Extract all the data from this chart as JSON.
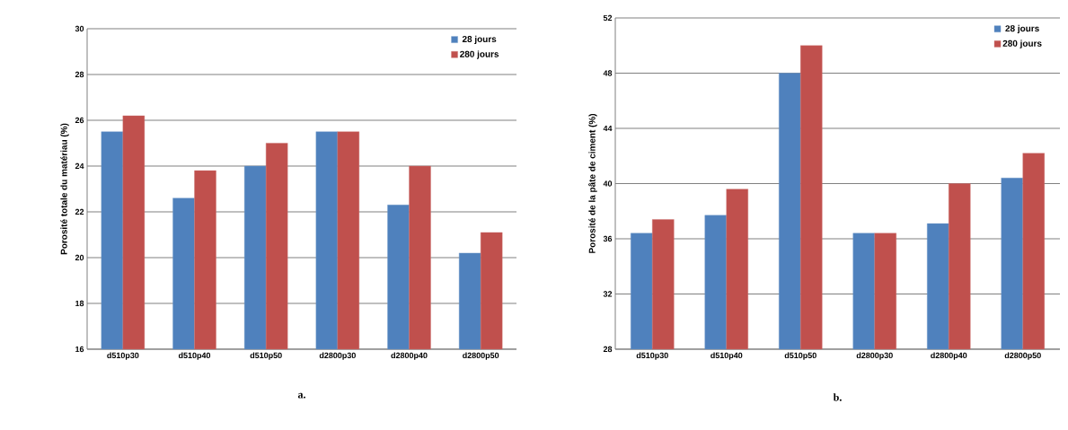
{
  "chart_data": [
    {
      "type": "bar",
      "ylabel": "Porosité totale du matériau (%)",
      "categories": [
        "d510p30",
        "d510p40",
        "d510p50",
        "d2800p30",
        "d2800p40",
        "d2800p50"
      ],
      "series": [
        {
          "name": "28 jours",
          "color": "#4f81bd",
          "values": [
            25.5,
            22.6,
            24.0,
            25.5,
            22.3,
            20.2
          ]
        },
        {
          "name": "280 jours",
          "color": "#c0504d",
          "values": [
            26.2,
            23.8,
            25.0,
            25.5,
            24.0,
            21.1
          ]
        }
      ],
      "ylim": [
        16,
        30
      ],
      "yticks": [
        16,
        18,
        20,
        22,
        24,
        26,
        28,
        30
      ],
      "grid": "y",
      "legend": "top right",
      "annotations": [
        "a."
      ]
    },
    {
      "type": "bar",
      "ylabel": "Porosité  de la pâte de ciment (%)",
      "categories": [
        "d510p30",
        "d510p40",
        "d510p50",
        "d2800p30",
        "d2800p40",
        "d2800p50"
      ],
      "series": [
        {
          "name": "28 jours",
          "color": "#4f81bd",
          "values": [
            36.4,
            37.7,
            48.0,
            36.4,
            37.1,
            40.4
          ]
        },
        {
          "name": "280 jours",
          "color": "#c0504d",
          "values": [
            37.4,
            39.6,
            50.0,
            36.4,
            40.0,
            42.2
          ]
        }
      ],
      "ylim": [
        28,
        52
      ],
      "yticks": [
        28,
        32,
        36,
        40,
        44,
        48,
        52
      ],
      "grid": "y",
      "legend": "top right",
      "annotations": [
        "b."
      ]
    }
  ]
}
